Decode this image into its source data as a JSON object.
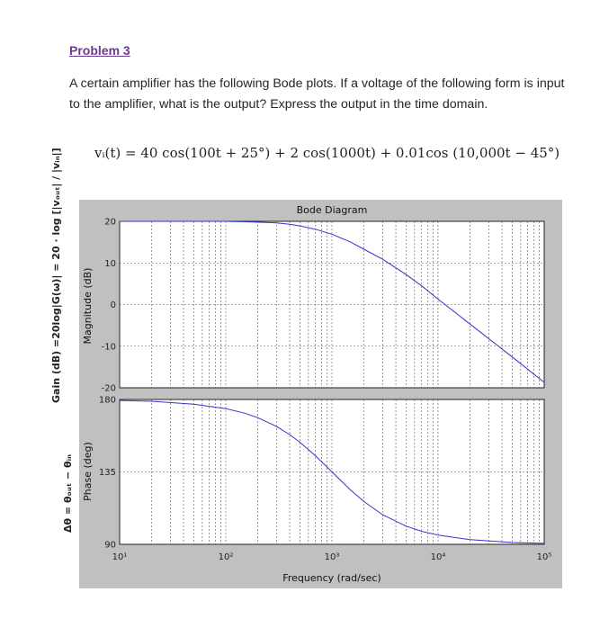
{
  "problem": {
    "title": "Problem 3",
    "text": "A certain amplifier has the following Bode plots.   If a voltage of the following form is input to the amplifier, what is the output?  Express the output in the time domain.",
    "equation": "vᵢ(t) = 40 cos(100t + 25°) + 2 cos(1000t) + 0.01cos (10,000t − 45°)"
  },
  "side_labels": {
    "gain": "Gain (dB) =20log|G(ω)| = 20 · log [|vₒᵤₜ| / |vᵢₙ|]",
    "phase": "Δθ = θₒᵤₜ − θᵢₙ"
  },
  "chart_data": [
    {
      "type": "line",
      "title": "Bode Diagram",
      "ylabel": "Magnitude (dB)",
      "xlabel": "",
      "xscale": "log",
      "xlim": [
        10,
        100000
      ],
      "ylim": [
        -20,
        20
      ],
      "yticks": [
        20,
        10,
        0,
        -10,
        -20
      ],
      "grid": true,
      "series": [
        {
          "color": "#3333cc",
          "x": [
            10,
            20,
            50,
            100,
            150,
            200,
            300,
            400,
            500,
            700,
            1000,
            1500,
            2000,
            3000,
            5000,
            7000,
            10000,
            20000,
            50000,
            100000
          ],
          "y": [
            20,
            20,
            20,
            20,
            19.9,
            19.8,
            19.6,
            19.3,
            18.9,
            18.1,
            16.9,
            15.0,
            13.3,
            10.9,
            7.2,
            4.5,
            1.3,
            -4.7,
            -12.6,
            -18.7
          ]
        }
      ]
    },
    {
      "type": "line",
      "ylabel": "Phase (deg)",
      "xlabel": "Frequency  (rad/sec)",
      "xscale": "log",
      "xlim": [
        10,
        100000
      ],
      "ylim": [
        90,
        180
      ],
      "yticks": [
        180,
        135,
        90
      ],
      "xticks": [
        "10¹",
        "10²",
        "10³",
        "10⁴",
        "10⁵"
      ],
      "grid": true,
      "series": [
        {
          "color": "#3333cc",
          "x": [
            10,
            20,
            50,
            100,
            150,
            200,
            300,
            400,
            500,
            700,
            1000,
            1500,
            2000,
            3000,
            5000,
            7000,
            10000,
            20000,
            50000,
            100000
          ],
          "y": [
            179.4,
            178.9,
            177.1,
            174.3,
            171.5,
            168.7,
            163.3,
            158.2,
            153.4,
            145.0,
            135.0,
            123.7,
            116.6,
            108.4,
            101.3,
            98.1,
            95.7,
            92.9,
            91.1,
            90.6
          ]
        }
      ]
    }
  ]
}
